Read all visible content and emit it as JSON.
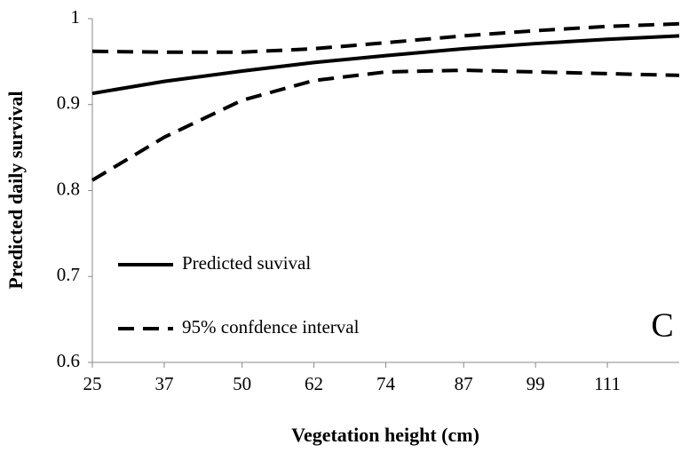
{
  "chart_data": {
    "type": "line",
    "xlabel": "Vegetation height (cm)",
    "ylabel": "Predicted daily survival",
    "annotation": "C",
    "x": [
      25,
      37,
      50,
      62,
      74,
      87,
      99,
      111,
      123
    ],
    "series": [
      {
        "name": "Predicted suvival",
        "color": "#000000",
        "style": "solid",
        "values": [
          0.913,
          0.927,
          0.939,
          0.949,
          0.957,
          0.965,
          0.971,
          0.976,
          0.98
        ]
      },
      {
        "name": "95% confdence interval",
        "color": "#000000",
        "style": "dashed",
        "lower": [
          0.812,
          0.862,
          0.905,
          0.928,
          0.938,
          0.94,
          0.938,
          0.936,
          0.934
        ],
        "upper": [
          0.962,
          0.961,
          0.961,
          0.965,
          0.972,
          0.98,
          0.986,
          0.991,
          0.994
        ]
      }
    ],
    "xlim": [
      25,
      123
    ],
    "xticks": [
      25,
      37,
      50,
      62,
      74,
      87,
      99,
      111
    ],
    "ylim": [
      0.6,
      1
    ],
    "yticks": [
      0.6,
      0.7,
      0.8,
      0.9,
      1
    ],
    "grid": false,
    "legend": "lower left"
  }
}
